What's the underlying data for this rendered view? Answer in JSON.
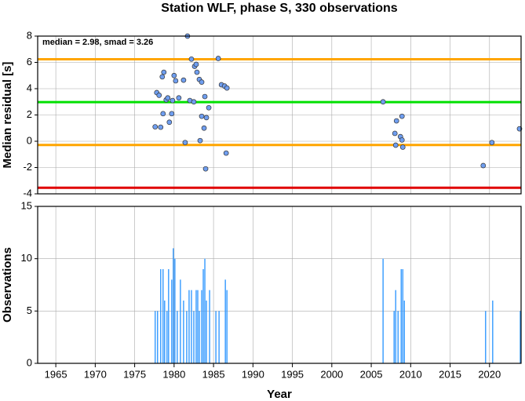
{
  "chart_data": [
    {
      "type": "scatter",
      "title": "Station WLF, phase S, 330 observations",
      "annotation": "median = 2.98, smad = 3.26",
      "ylabel": "Median residual [s]",
      "color": "#6f9ef0",
      "grid": true,
      "xlim": [
        1962.7,
        2024.0
      ],
      "ylim": [
        -4,
        8
      ],
      "yticks": [
        -4,
        -2,
        0,
        2,
        4,
        6,
        8
      ],
      "hlines": [
        {
          "value": 6.24,
          "color": "#ffa500"
        },
        {
          "value": 2.98,
          "color": "#00e000"
        },
        {
          "value": -0.28,
          "color": "#ffa500"
        },
        {
          "value": -3.54,
          "color": "#e00000"
        }
      ],
      "x": [
        1977.6,
        1977.8,
        1978.1,
        1978.3,
        1978.5,
        1978.7,
        1978.6,
        1979.0,
        1979.2,
        1979.4,
        1979.7,
        1979.8,
        1980.0,
        1980.2,
        1980.6,
        1981.2,
        1981.4,
        1981.7,
        1982.0,
        1982.2,
        1982.5,
        1982.6,
        1982.8,
        1982.9,
        1983.2,
        1983.3,
        1983.5,
        1983.5,
        1983.8,
        1983.9,
        1984.0,
        1984.1,
        1984.4,
        1985.6,
        1986.0,
        1986.4,
        1986.7,
        1986.6,
        2006.5,
        2008.0,
        2008.2,
        2008.1,
        2008.7,
        2008.9,
        2008.9,
        2009.0,
        2019.2,
        2020.3,
        2023.8
      ],
      "values": [
        1.1,
        3.7,
        3.5,
        1.07,
        4.9,
        5.25,
        2.1,
        3.15,
        3.3,
        1.45,
        2.1,
        3.1,
        5.0,
        4.6,
        3.3,
        4.65,
        -0.1,
        8.0,
        3.1,
        6.25,
        3.0,
        5.7,
        5.85,
        5.25,
        4.7,
        0.05,
        4.5,
        1.9,
        1.0,
        3.4,
        -2.1,
        1.8,
        2.55,
        6.3,
        4.3,
        4.2,
        4.05,
        -0.9,
        3.0,
        0.6,
        1.55,
        -0.3,
        0.35,
        1.9,
        0.1,
        -0.45,
        -1.85,
        -0.1,
        0.95
      ]
    },
    {
      "type": "bar",
      "xlabel": "Year",
      "ylabel": "Observations",
      "color": "#3399ff",
      "grid": true,
      "xlim": [
        1962.7,
        2024.0
      ],
      "ylim": [
        0,
        15
      ],
      "yticks": [
        0,
        5,
        10,
        15
      ],
      "xticks": [
        1965,
        1970,
        1975,
        1980,
        1985,
        1990,
        1995,
        2000,
        2005,
        2010,
        2015,
        2020
      ],
      "x": [
        1977.6,
        1977.9,
        1978.3,
        1978.6,
        1978.8,
        1979.1,
        1979.3,
        1979.7,
        1979.9,
        1980.1,
        1980.4,
        1980.8,
        1981.2,
        1981.6,
        1981.9,
        1982.2,
        1982.5,
        1982.8,
        1983.0,
        1983.2,
        1983.5,
        1983.7,
        1983.9,
        1984.1,
        1984.5,
        1985.3,
        1985.7,
        1986.5,
        1986.7,
        2006.5,
        2007.9,
        2008.1,
        2008.4,
        2008.8,
        2009.0,
        2009.2,
        2019.5,
        2020.4,
        2023.9
      ],
      "values": [
        5,
        5,
        9,
        9,
        6,
        5,
        9,
        8,
        11,
        10,
        5,
        8,
        6,
        5,
        7,
        7,
        5,
        7,
        7,
        5,
        7,
        9,
        10,
        6,
        7,
        5,
        5,
        8,
        7,
        10,
        5,
        7,
        5,
        9,
        9,
        6,
        5,
        6,
        5
      ]
    }
  ]
}
